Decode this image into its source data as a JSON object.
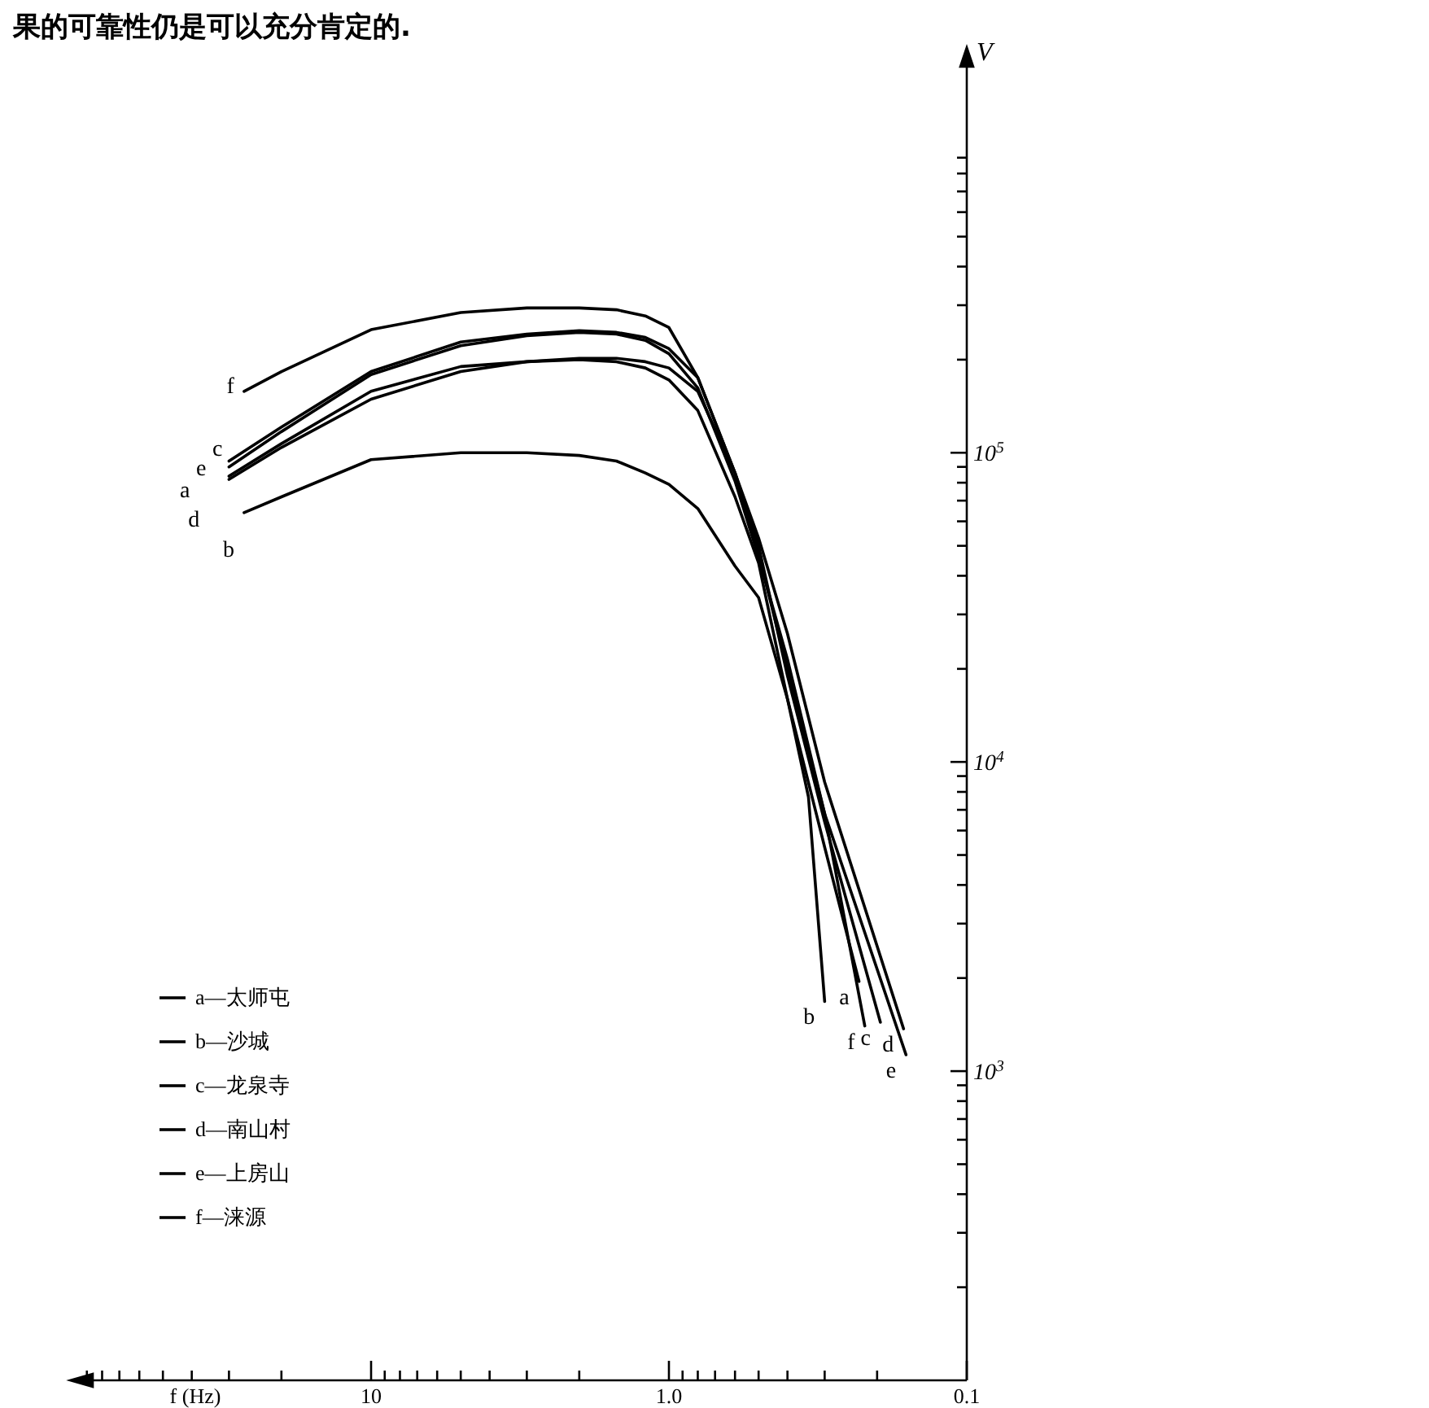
{
  "chart_data": {
    "type": "line",
    "xlabel": "f (Hz)",
    "ylabel": "V",
    "log": "xy",
    "legend": "bottom left",
    "xlim": [
      100,
      0.1
    ],
    "ylim": [
      100,
      2000000
    ],
    "xticks": [
      10,
      {
        "value": 1,
        "label": "1.0"
      },
      0.1
    ],
    "yticks": [
      {
        "value": 1000,
        "label": "10$^{3}$"
      },
      {
        "value": 10000,
        "label": "10$^{4}$"
      },
      {
        "value": 100000,
        "label": "10$^{5}$"
      }
    ],
    "series": [
      {
        "name": "a—太师屯",
        "color": "#000000",
        "x": [
          30,
          20,
          10,
          5,
          3,
          2,
          1.5,
          1.2,
          1.0,
          0.8,
          0.6,
          0.5,
          0.4,
          0.3,
          0.23
        ],
        "values": [
          84000,
          107000,
          158000,
          190000,
          197000,
          200000,
          197000,
          188000,
          172000,
          137000,
          72000,
          44000,
          16000,
          5300,
          1950
        ]
      },
      {
        "name": "b—沙城",
        "color": "#000000",
        "x": [
          26.7,
          20,
          10,
          5,
          3,
          2,
          1.5,
          1.2,
          1.0,
          0.8,
          0.6,
          0.5,
          0.4,
          0.34,
          0.3
        ],
        "values": [
          64000,
          72000,
          95000,
          100000,
          100000,
          98000,
          94000,
          86000,
          79000,
          66000,
          43000,
          34000,
          16000,
          7700,
          1680
        ]
      },
      {
        "name": "c—龙泉寺",
        "color": "#000000",
        "x": [
          30,
          20,
          10,
          5,
          3,
          2,
          1.5,
          1.2,
          1.0,
          0.8,
          0.6,
          0.5,
          0.4,
          0.3,
          0.195
        ],
        "values": [
          94000,
          121000,
          183000,
          228000,
          242000,
          248000,
          245000,
          236000,
          217000,
          175000,
          86000,
          50000,
          19000,
          6400,
          1440
        ]
      },
      {
        "name": "d—南山村",
        "color": "#000000",
        "x": [
          30,
          20,
          10,
          5,
          3,
          2,
          1.5,
          1.2,
          1.0,
          0.8,
          0.6,
          0.5,
          0.4,
          0.3,
          0.163
        ],
        "values": [
          82000,
          104000,
          149000,
          183000,
          197000,
          202000,
          202000,
          197000,
          188000,
          158000,
          86000,
          53000,
          26000,
          8600,
          1370
        ]
      },
      {
        "name": "e—上房山",
        "color": "#000000",
        "x": [
          30,
          20,
          10,
          5,
          3,
          2,
          1.5,
          1.2,
          1.0,
          0.8,
          0.6,
          0.5,
          0.4,
          0.3,
          0.16
        ],
        "values": [
          90000,
          117000,
          179000,
          222000,
          239000,
          245000,
          242000,
          231000,
          209000,
          162000,
          81000,
          46000,
          21500,
          6800,
          1130
        ]
      },
      {
        "name": "f—涞源",
        "color": "#000000",
        "x": [
          26.7,
          20,
          10,
          5,
          3,
          2,
          1.5,
          1.2,
          1.0,
          0.8,
          0.6,
          0.5,
          0.4,
          0.3,
          0.22
        ],
        "values": [
          158000,
          183000,
          250000,
          284000,
          294000,
          294000,
          290000,
          277000,
          254000,
          175000,
          86000,
          47000,
          20000,
          6800,
          1400
        ]
      }
    ],
    "annotations": [
      "果的可靠性仍是可以充分肯定的.",
      {
        "text": "a",
        "x": 30,
        "y": 84000
      },
      {
        "text": "b",
        "x": 26.7,
        "y": 64000
      },
      {
        "text": "c",
        "x": 30,
        "y": 94000
      },
      {
        "text": "d",
        "x": 30,
        "y": 82000
      },
      {
        "text": "e",
        "x": 30,
        "y": 90000
      },
      {
        "text": "f",
        "x": 26.7,
        "y": 158000
      },
      {
        "text": "b",
        "x": 0.3,
        "y": 1680
      },
      {
        "text": "a",
        "x": 0.23,
        "y": 1950
      },
      {
        "text": "f",
        "x": 0.22,
        "y": 1400
      },
      {
        "text": "c",
        "x": 0.195,
        "y": 1440
      },
      {
        "text": "d",
        "x": 0.163,
        "y": 1370
      },
      {
        "text": "e",
        "x": 0.16,
        "y": 1130
      }
    ]
  }
}
